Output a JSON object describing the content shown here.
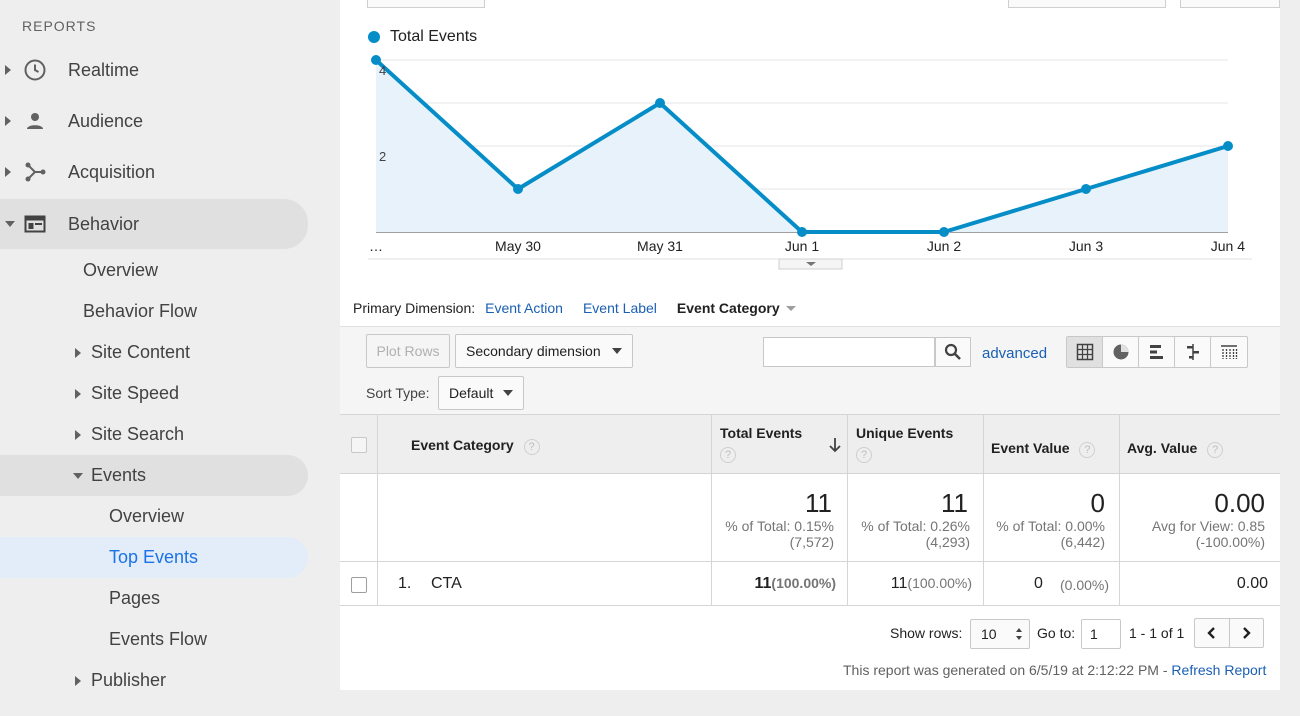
{
  "sidebar": {
    "section_title": "REPORTS",
    "items": [
      {
        "label": "Realtime",
        "icon": "clock-icon"
      },
      {
        "label": "Audience",
        "icon": "person-icon"
      },
      {
        "label": "Acquisition",
        "icon": "acquisition-icon"
      },
      {
        "label": "Behavior",
        "icon": "behavior-icon"
      }
    ],
    "behavior_sub": {
      "overview": "Overview",
      "behavior_flow": "Behavior Flow",
      "site_content": "Site Content",
      "site_speed": "Site Speed",
      "site_search": "Site Search",
      "events": "Events",
      "publisher": "Publisher"
    },
    "events_sub": {
      "overview": "Overview",
      "top_events": "Top Events",
      "pages": "Pages",
      "events_flow": "Events Flow"
    }
  },
  "chart": {
    "legend": "Total Events",
    "color": "#058dc7"
  },
  "chart_data": {
    "type": "area",
    "categories": [
      "…",
      "May 30",
      "May 31",
      "Jun 1",
      "Jun 2",
      "Jun 3",
      "Jun 4"
    ],
    "series": [
      {
        "name": "Total Events",
        "values": [
          4,
          1,
          3,
          0,
          0,
          1,
          2
        ]
      }
    ],
    "ytick_labels": [
      "4",
      "2"
    ],
    "ylim": [
      0,
      4
    ],
    "grid": true
  },
  "primary_dimension": {
    "label": "Primary Dimension:",
    "options": [
      "Event Action",
      "Event Label"
    ],
    "current": "Event Category"
  },
  "toolbar": {
    "plot_rows": "Plot Rows",
    "secondary_dimension": "Secondary dimension",
    "search_value": "",
    "advanced": "advanced",
    "sort_type_label": "Sort Type:",
    "sort_type_value": "Default"
  },
  "table": {
    "headers": {
      "dimension": "Event Category",
      "total_events": "Total Events",
      "unique_events": "Unique Events",
      "event_value": "Event Value",
      "avg_value": "Avg. Value"
    },
    "help_glyph": "?",
    "totals": {
      "total_events": {
        "value": "11",
        "line1": "% of Total: 0.15%",
        "line2": "(7,572)"
      },
      "unique_events": {
        "value": "11",
        "line1": "% of Total: 0.26%",
        "line2": "(4,293)"
      },
      "event_value": {
        "value": "0",
        "line1": "% of Total: 0.00%",
        "line2": "(6,442)"
      },
      "avg_value": {
        "value": "0.00",
        "line1": "Avg for View: 0.85",
        "line2": "(-100.00%)"
      }
    },
    "rows": [
      {
        "index": "1.",
        "category": "CTA",
        "total_events": "11",
        "total_events_pct": "(100.00%)",
        "unique_events": "11",
        "unique_events_pct": "(100.00%)",
        "event_value": "0",
        "event_value_pct": "(0.00%)",
        "avg_value": "0.00"
      }
    ]
  },
  "pagination": {
    "show_rows_label": "Show rows:",
    "show_rows_value": "10",
    "go_to_label": "Go to:",
    "go_to_value": "1",
    "range": "1 - 1 of 1"
  },
  "footer": {
    "generated": "This report was generated on 6/5/19 at 2:12:22 PM - ",
    "refresh": "Refresh Report"
  }
}
